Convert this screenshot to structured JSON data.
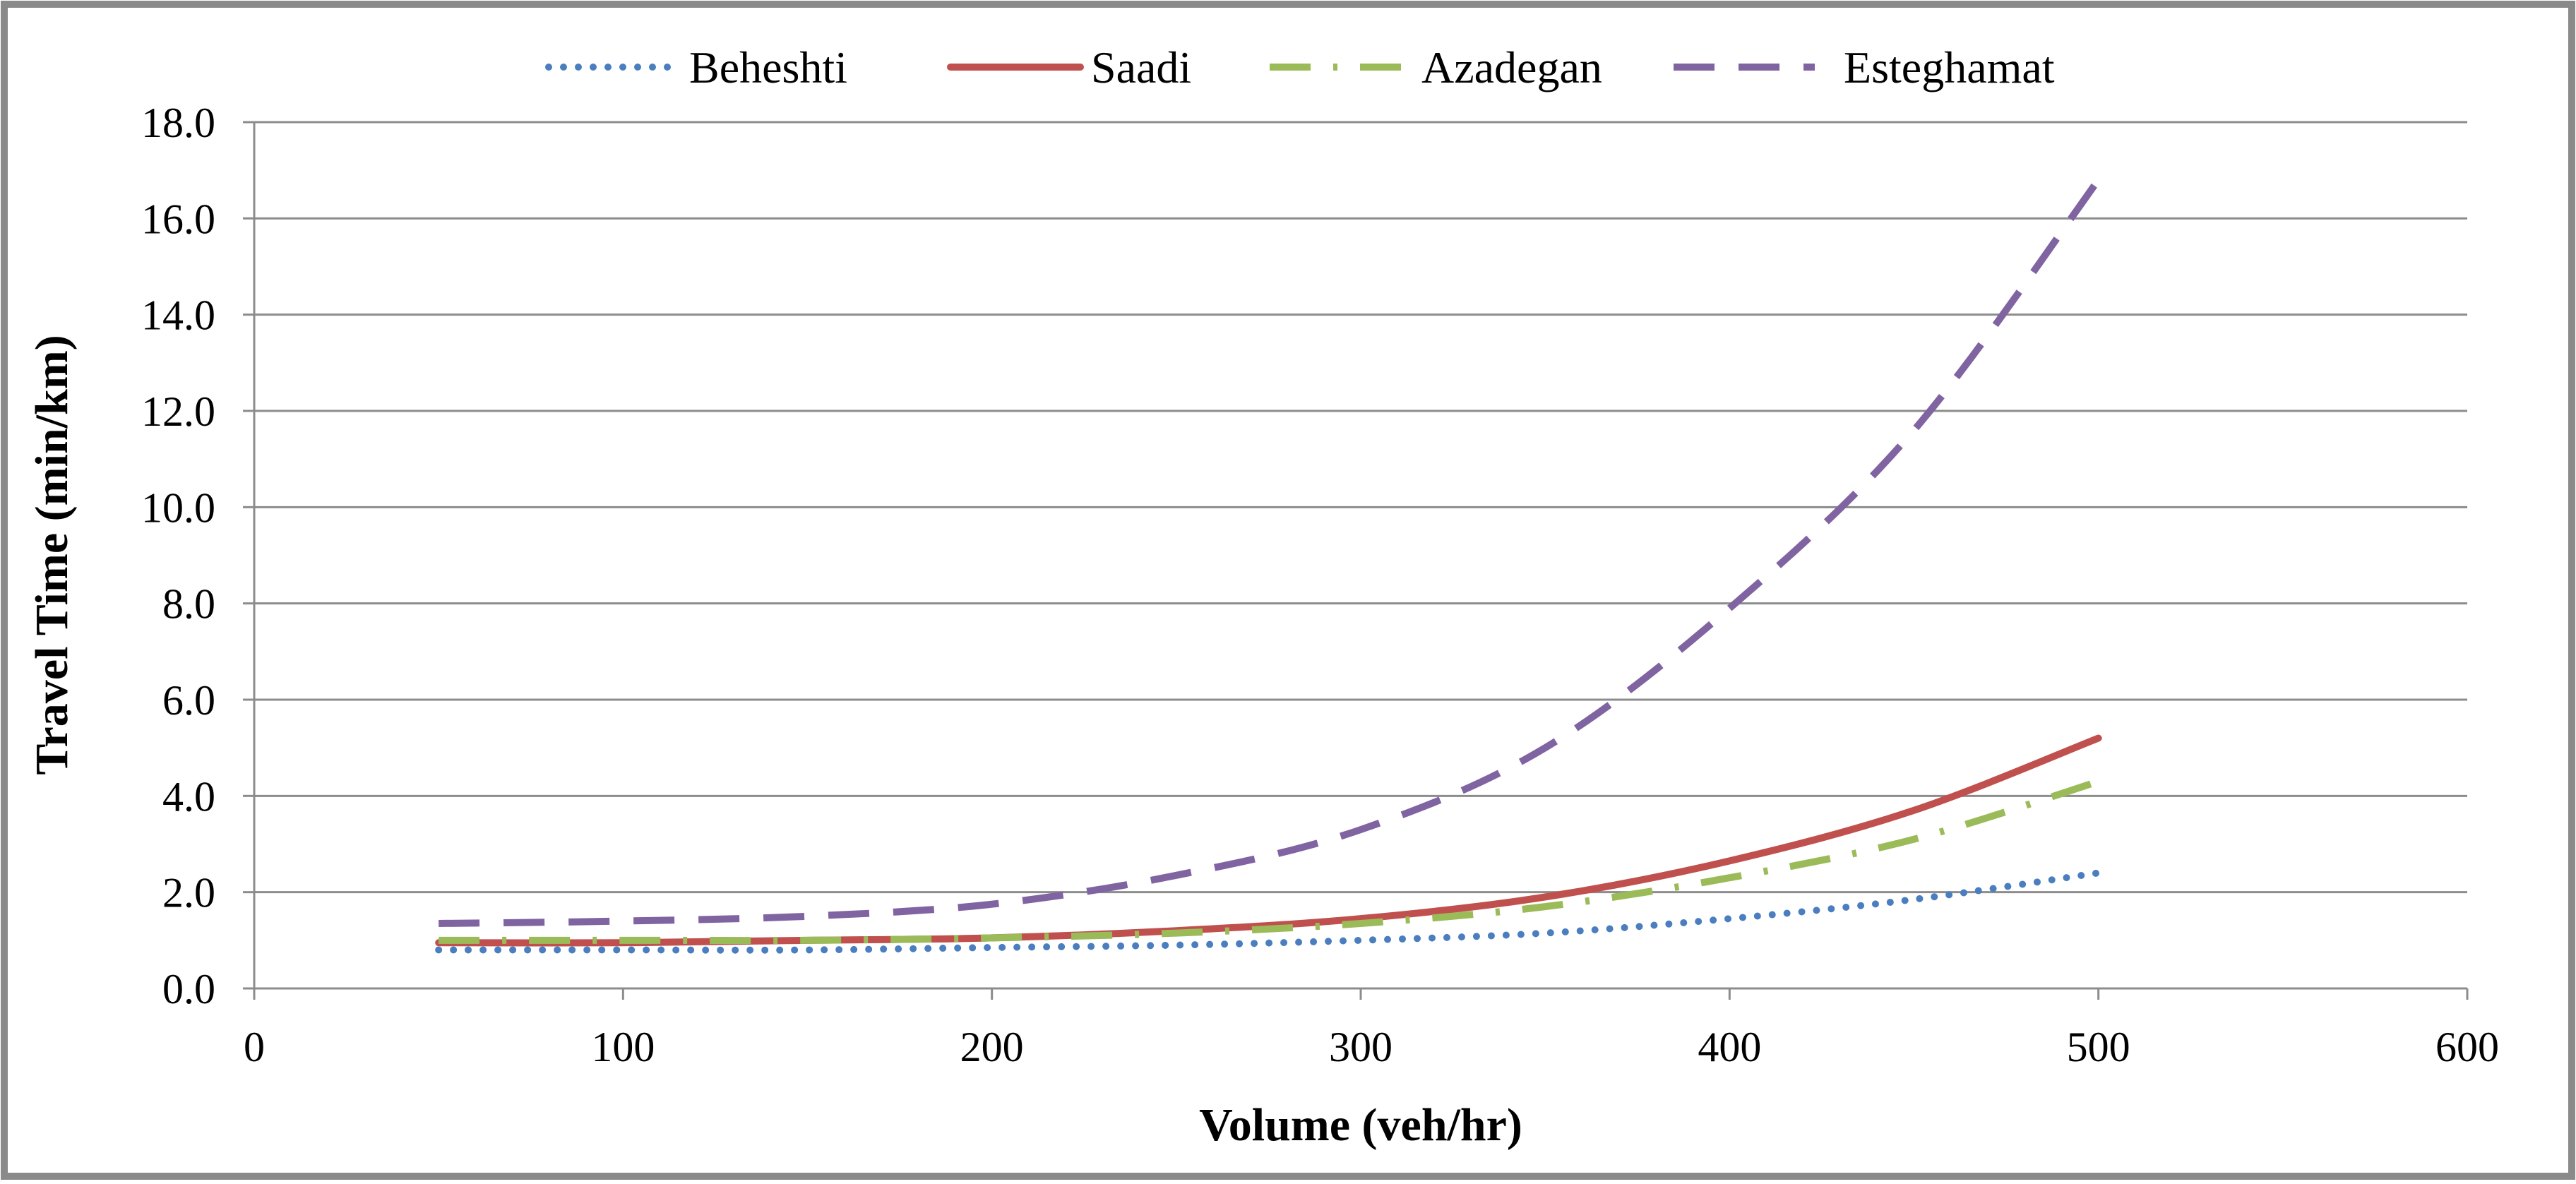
{
  "chart_data": {
    "type": "line",
    "title": "",
    "xlabel": "Volume (veh/hr)",
    "ylabel": "Travel Time (min/km)",
    "xlim": [
      0,
      600
    ],
    "ylim": [
      0,
      18
    ],
    "x_ticks": [
      0,
      100,
      200,
      300,
      400,
      500,
      600
    ],
    "x_tick_labels": [
      "0",
      "100",
      "200",
      "300",
      "400",
      "500",
      "600"
    ],
    "y_ticks": [
      0,
      2,
      4,
      6,
      8,
      10,
      12,
      14,
      16,
      18
    ],
    "y_tick_labels": [
      "0.0",
      "2.0",
      "4.0",
      "6.0",
      "8.0",
      "10.0",
      "12.0",
      "14.0",
      "16.0",
      "18.0"
    ],
    "grid": "horizontal",
    "legend_position": "top",
    "series": [
      {
        "name": "Beheshti",
        "color": "#4a7ebf",
        "style": "dotted",
        "x": [
          50,
          100,
          150,
          200,
          250,
          300,
          350,
          400,
          450,
          500
        ],
        "y": [
          0.8,
          0.8,
          0.8,
          0.85,
          0.9,
          1.0,
          1.15,
          1.45,
          1.85,
          2.4
        ]
      },
      {
        "name": "Saadi",
        "color": "#c0504d",
        "style": "solid",
        "x": [
          50,
          100,
          150,
          200,
          250,
          300,
          350,
          400,
          450,
          500
        ],
        "y": [
          0.95,
          0.95,
          1.0,
          1.05,
          1.2,
          1.45,
          1.9,
          2.65,
          3.7,
          5.2
        ]
      },
      {
        "name": "Azadegan",
        "color": "#9bbb59",
        "style": "dash-dot",
        "x": [
          50,
          100,
          150,
          200,
          250,
          300,
          350,
          400,
          450,
          500
        ],
        "y": [
          1.0,
          1.0,
          1.0,
          1.05,
          1.15,
          1.35,
          1.7,
          2.3,
          3.1,
          4.3
        ]
      },
      {
        "name": "Esteghamat",
        "color": "#8064a2",
        "style": "dashed",
        "x": [
          50,
          100,
          150,
          200,
          250,
          300,
          350,
          400,
          450,
          500
        ],
        "y": [
          1.35,
          1.4,
          1.5,
          1.75,
          2.35,
          3.3,
          5.0,
          7.9,
          11.6,
          16.8
        ]
      }
    ]
  }
}
